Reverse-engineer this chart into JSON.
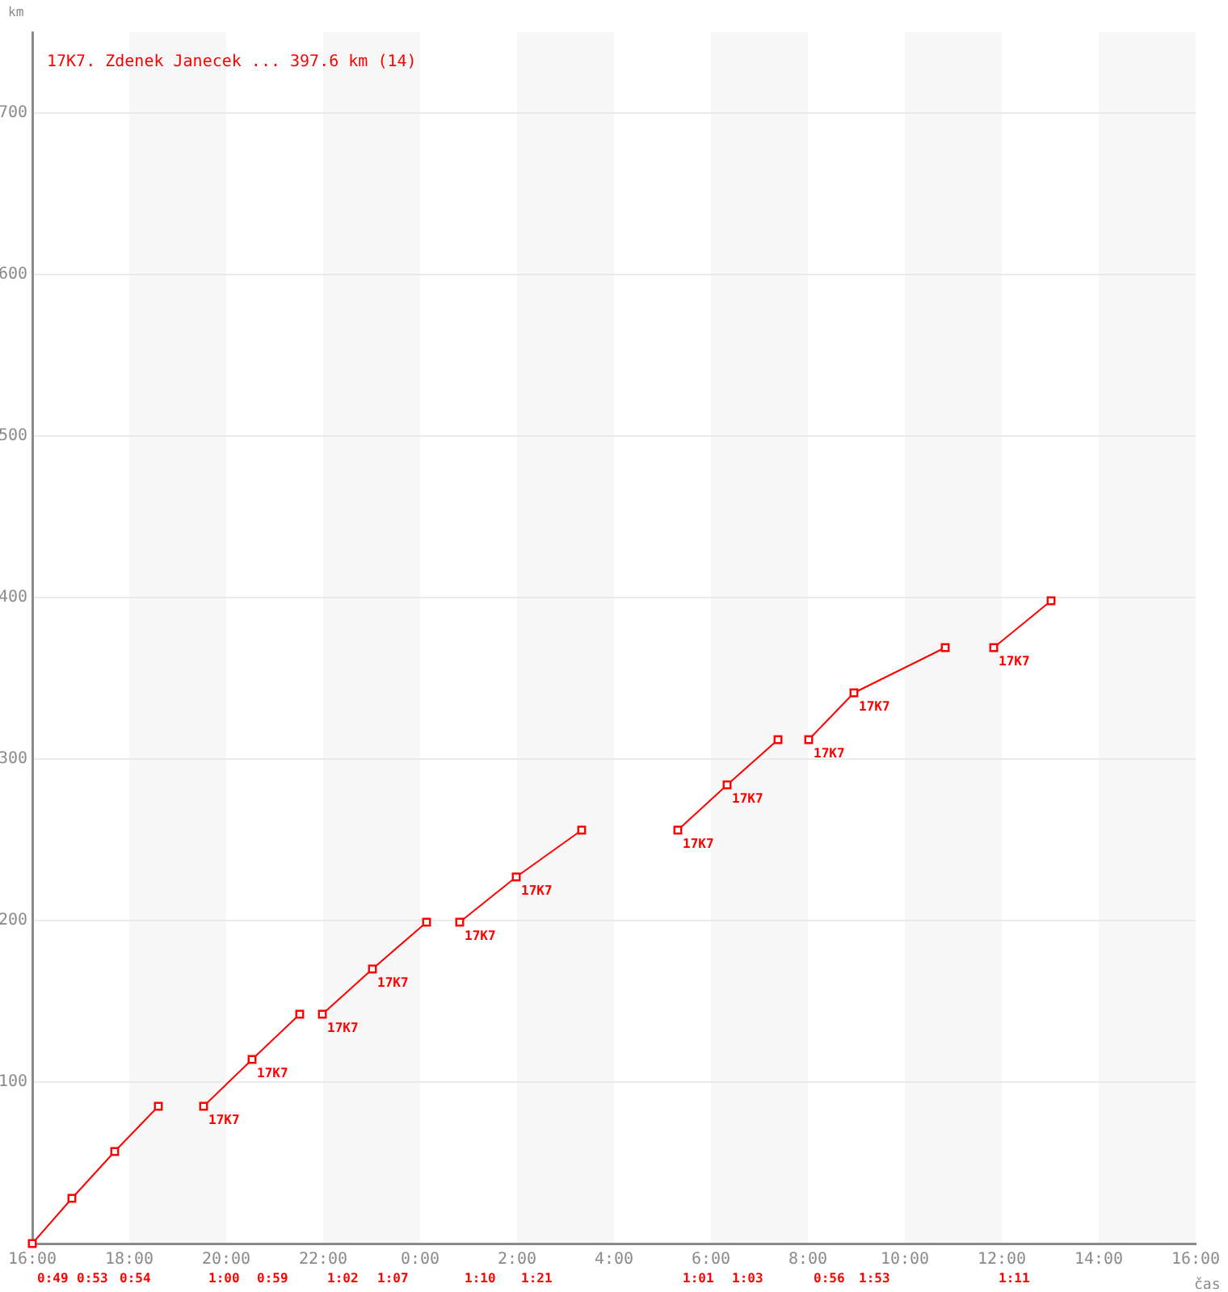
{
  "chart_data": {
    "type": "line",
    "title": "17K7. Zdenek Janecek ... 397.6 km (14)",
    "xlabel": "čas",
    "ylabel": "km",
    "series": [
      {
        "color": "#ff0000",
        "x": [
          "--01-01T16:00",
          "--01-01T16:49",
          "--01-01T17:42",
          "--01-01T18:36"
        ],
        "values": [
          0,
          28,
          57,
          85
        ]
      },
      {
        "color": "#ff0000",
        "x": [
          "--01-01T19:32",
          "--01-01T20:32",
          "--01-01T21:31"
        ],
        "values": [
          85,
          114,
          142
        ]
      },
      {
        "color": "#ff0000",
        "x": [
          "--01-01T21:59",
          "--01-01T23:01",
          "--01-02T00:08"
        ],
        "values": [
          142,
          170,
          199
        ]
      },
      {
        "color": "#ff0000",
        "x": [
          "--01-02T00:49",
          "--01-02T01:59",
          "--01-02T03:20"
        ],
        "values": [
          199,
          227,
          256
        ]
      },
      {
        "color": "#ff0000",
        "x": [
          "--01-02T05:19",
          "--01-02T06:20",
          "--01-02T07:23"
        ],
        "values": [
          256,
          284,
          312
        ]
      },
      {
        "color": "#ff0000",
        "x": [
          "--01-02T08:01",
          "--01-02T08:57",
          "--01-02T10:50"
        ],
        "values": [
          312,
          341,
          369
        ]
      },
      {
        "color": "#ff0000",
        "x": [
          "--01-02T11:50",
          "--01-02T13:01"
        ],
        "values": [
          369,
          398
        ]
      }
    ],
    "xlim": [
      "--01-01T16:00",
      "--01-02T16:00"
    ],
    "xticks": [
      {
        "value": "--01-01T16:00",
        "label": "16:00"
      },
      {
        "value": "--01-01T18:00",
        "label": "18:00"
      },
      {
        "value": "--01-01T20:00",
        "label": "20:00"
      },
      {
        "value": "--01-01T22:00",
        "label": "22:00"
      },
      {
        "value": "--01-02T00:00",
        "label": "0:00"
      },
      {
        "value": "--01-02T02:00",
        "label": "2:00"
      },
      {
        "value": "--01-02T04:00",
        "label": "4:00"
      },
      {
        "value": "--01-02T06:00",
        "label": "6:00"
      },
      {
        "value": "--01-02T08:00",
        "label": "8:00"
      },
      {
        "value": "--01-02T10:00",
        "label": "10:00"
      },
      {
        "value": "--01-02T12:00",
        "label": "12:00"
      },
      {
        "value": "--01-02T14:00",
        "label": "14:00"
      },
      {
        "value": "--01-02T16:00",
        "label": "16:00"
      }
    ],
    "ylim": [
      0,
      750
    ],
    "yticks": [
      100,
      200,
      300,
      400,
      500,
      600,
      700
    ],
    "bands": [
      {
        "axis": "x",
        "from": "--01-01T18:00",
        "to": "--01-01T20:00",
        "color": "#f7f7f7"
      },
      {
        "axis": "x",
        "from": "--01-01T22:00",
        "to": "--01-02T00:00",
        "color": "#f7f7f7"
      },
      {
        "axis": "x",
        "from": "--01-02T02:00",
        "to": "--01-02T04:00",
        "color": "#f7f7f7"
      },
      {
        "axis": "x",
        "from": "--01-02T06:00",
        "to": "--01-02T08:00",
        "color": "#f7f7f7"
      },
      {
        "axis": "x",
        "from": "--01-02T10:00",
        "to": "--01-02T12:00",
        "color": "#f7f7f7"
      },
      {
        "axis": "x",
        "from": "--01-02T14:00",
        "to": "--01-02T16:00",
        "color": "#f7f7f7"
      }
    ],
    "annotations": [
      {
        "text": "17K7",
        "x": "--01-01T19:32",
        "y": 85
      },
      {
        "text": "17K7",
        "x": "--01-01T20:32",
        "y": 114
      },
      {
        "text": "17K7",
        "x": "--01-01T21:59",
        "y": 142
      },
      {
        "text": "17K7",
        "x": "--01-01T23:01",
        "y": 170
      },
      {
        "text": "17K7",
        "x": "--01-02T00:49",
        "y": 199
      },
      {
        "text": "17K7",
        "x": "--01-02T01:59",
        "y": 227
      },
      {
        "text": "17K7",
        "x": "--01-02T05:19",
        "y": 256
      },
      {
        "text": "17K7",
        "x": "--01-02T06:20",
        "y": 284
      },
      {
        "text": "17K7",
        "x": "--01-02T08:01",
        "y": 312
      },
      {
        "text": "17K7",
        "x": "--01-02T08:57",
        "y": 341
      },
      {
        "text": "17K7",
        "x": "--01-02T11:50",
        "y": 369
      },
      "0:49",
      "0:53",
      "0:54",
      "1:00",
      "0:59",
      "1:02",
      "1:07",
      "1:10",
      "1:21",
      "1:01",
      "1:03",
      "0:56",
      "1:53",
      "1:11"
    ],
    "grid": "y",
    "marker": "square"
  }
}
